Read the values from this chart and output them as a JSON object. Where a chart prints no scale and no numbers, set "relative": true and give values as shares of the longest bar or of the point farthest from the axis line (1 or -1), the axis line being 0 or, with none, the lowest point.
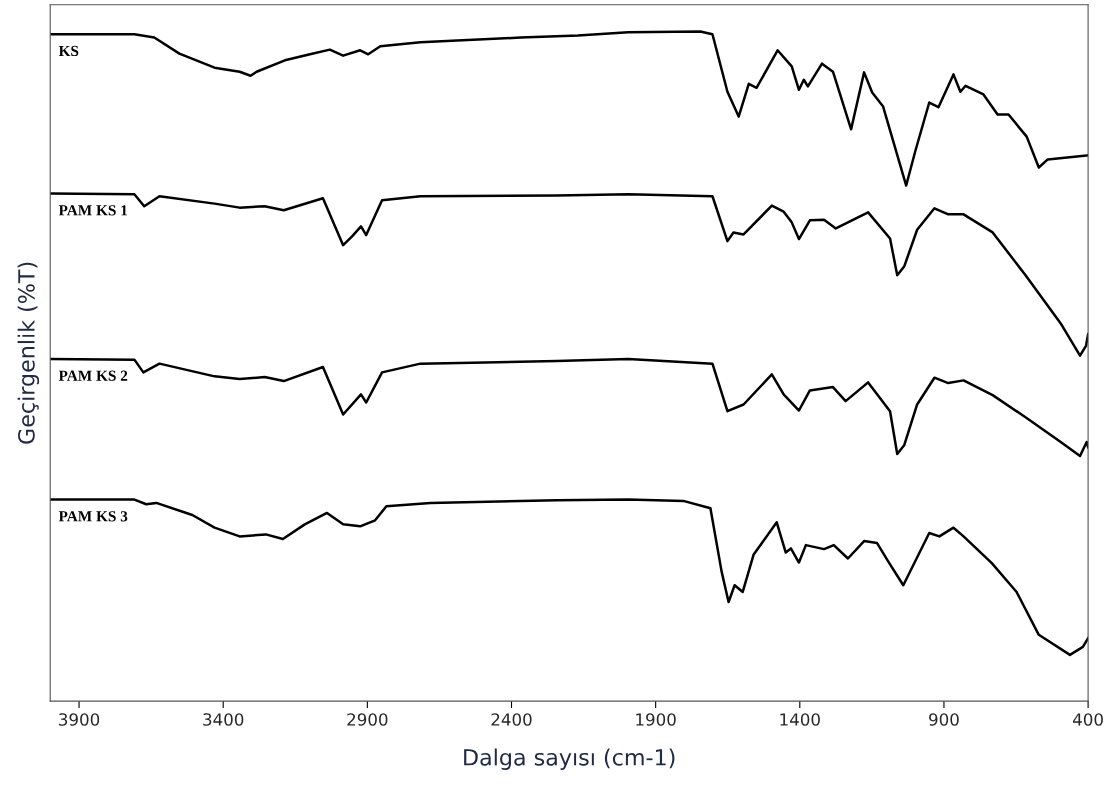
{
  "chart_data": {
    "type": "line",
    "relative": true,
    "xlabel": "Dalga sayısı (cm-1)",
    "ylabel": "Geçirgenlik (%T)",
    "xlim": [
      4000,
      400
    ],
    "xticks": [
      3900,
      3400,
      2900,
      2400,
      1900,
      1400,
      900,
      400
    ],
    "grid": false,
    "legend": false,
    "marker": "none",
    "line_style": "solid",
    "series": [
      {
        "name": "KS",
        "color": "#000000",
        "x": [
          4000,
          3708,
          3639,
          3552,
          3430,
          3343,
          3305,
          3284,
          3186,
          3099,
          3030,
          2984,
          2925,
          2897,
          2855,
          2716,
          2368,
          2169,
          1995,
          1745,
          1703,
          1651,
          1612,
          1577,
          1550,
          1477,
          1428,
          1403,
          1386,
          1372,
          1323,
          1285,
          1222,
          1177,
          1149,
          1111,
          1031,
          999,
          951,
          919,
          867,
          843,
          825,
          763,
          714,
          676,
          613,
          571,
          540,
          400
        ],
        "values": [
          0.996,
          0.996,
          0.991,
          0.967,
          0.946,
          0.94,
          0.934,
          0.94,
          0.957,
          0.966,
          0.973,
          0.964,
          0.972,
          0.966,
          0.978,
          0.984,
          0.991,
          0.994,
          0.999,
          1.0,
          0.996,
          0.91,
          0.873,
          0.922,
          0.916,
          0.972,
          0.948,
          0.913,
          0.928,
          0.918,
          0.952,
          0.94,
          0.854,
          0.939,
          0.909,
          0.888,
          0.77,
          0.822,
          0.894,
          0.887,
          0.936,
          0.91,
          0.919,
          0.906,
          0.876,
          0.876,
          0.843,
          0.797,
          0.809,
          0.815
        ]
      },
      {
        "name": "PAM KS 1",
        "color": "#000000",
        "x": [
          4000,
          3708,
          3674,
          3621,
          3430,
          3343,
          3256,
          3190,
          3054,
          2984,
          2953,
          2922,
          2904,
          2849,
          2716,
          2243,
          1995,
          1703,
          1651,
          1630,
          1595,
          1497,
          1456,
          1428,
          1403,
          1365,
          1316,
          1275,
          1163,
          1087,
          1062,
          1038,
          993,
          933,
          885,
          832,
          731,
          617,
          495,
          428,
          407,
          400
        ],
        "values": [
          0.758,
          0.757,
          0.739,
          0.754,
          0.743,
          0.737,
          0.739,
          0.733,
          0.751,
          0.681,
          0.694,
          0.709,
          0.696,
          0.748,
          0.754,
          0.755,
          0.757,
          0.754,
          0.687,
          0.7,
          0.697,
          0.74,
          0.731,
          0.715,
          0.69,
          0.718,
          0.719,
          0.706,
          0.73,
          0.691,
          0.636,
          0.649,
          0.704,
          0.736,
          0.727,
          0.727,
          0.7,
          0.636,
          0.564,
          0.516,
          0.531,
          0.548
        ]
      },
      {
        "name": "PAM KS 2",
        "color": "#000000",
        "x": [
          4000,
          3708,
          3677,
          3621,
          3430,
          3343,
          3256,
          3190,
          3054,
          2984,
          2922,
          2904,
          2849,
          2716,
          2243,
          1995,
          1703,
          1651,
          1595,
          1497,
          1456,
          1403,
          1365,
          1285,
          1241,
          1163,
          1087,
          1062,
          1038,
          993,
          933,
          885,
          832,
          731,
          617,
          495,
          428,
          405,
          400
        ],
        "values": [
          0.511,
          0.51,
          0.491,
          0.504,
          0.485,
          0.481,
          0.484,
          0.478,
          0.499,
          0.428,
          0.458,
          0.446,
          0.491,
          0.504,
          0.508,
          0.511,
          0.504,
          0.433,
          0.443,
          0.488,
          0.458,
          0.434,
          0.464,
          0.469,
          0.448,
          0.476,
          0.433,
          0.369,
          0.382,
          0.443,
          0.483,
          0.475,
          0.479,
          0.457,
          0.424,
          0.387,
          0.366,
          0.387,
          0.379
        ]
      },
      {
        "name": "PAM KS 3",
        "color": "#000000",
        "x": [
          4000,
          3708,
          3667,
          3632,
          3507,
          3430,
          3343,
          3252,
          3193,
          3117,
          3040,
          2984,
          2925,
          2873,
          2834,
          2681,
          2243,
          1995,
          1804,
          1710,
          1671,
          1647,
          1626,
          1598,
          1560,
          1480,
          1449,
          1431,
          1403,
          1379,
          1316,
          1282,
          1233,
          1177,
          1132,
          1094,
          1041,
          951,
          916,
          867,
          832,
          734,
          648,
          571,
          463,
          418,
          400
        ],
        "values": [
          0.301,
          0.301,
          0.294,
          0.296,
          0.278,
          0.259,
          0.246,
          0.249,
          0.242,
          0.264,
          0.281,
          0.264,
          0.261,
          0.27,
          0.291,
          0.296,
          0.3,
          0.301,
          0.299,
          0.288,
          0.193,
          0.148,
          0.173,
          0.163,
          0.219,
          0.267,
          0.222,
          0.228,
          0.207,
          0.233,
          0.227,
          0.233,
          0.213,
          0.239,
          0.236,
          0.209,
          0.173,
          0.251,
          0.246,
          0.259,
          0.246,
          0.206,
          0.163,
          0.099,
          0.069,
          0.081,
          0.094
        ]
      }
    ]
  }
}
